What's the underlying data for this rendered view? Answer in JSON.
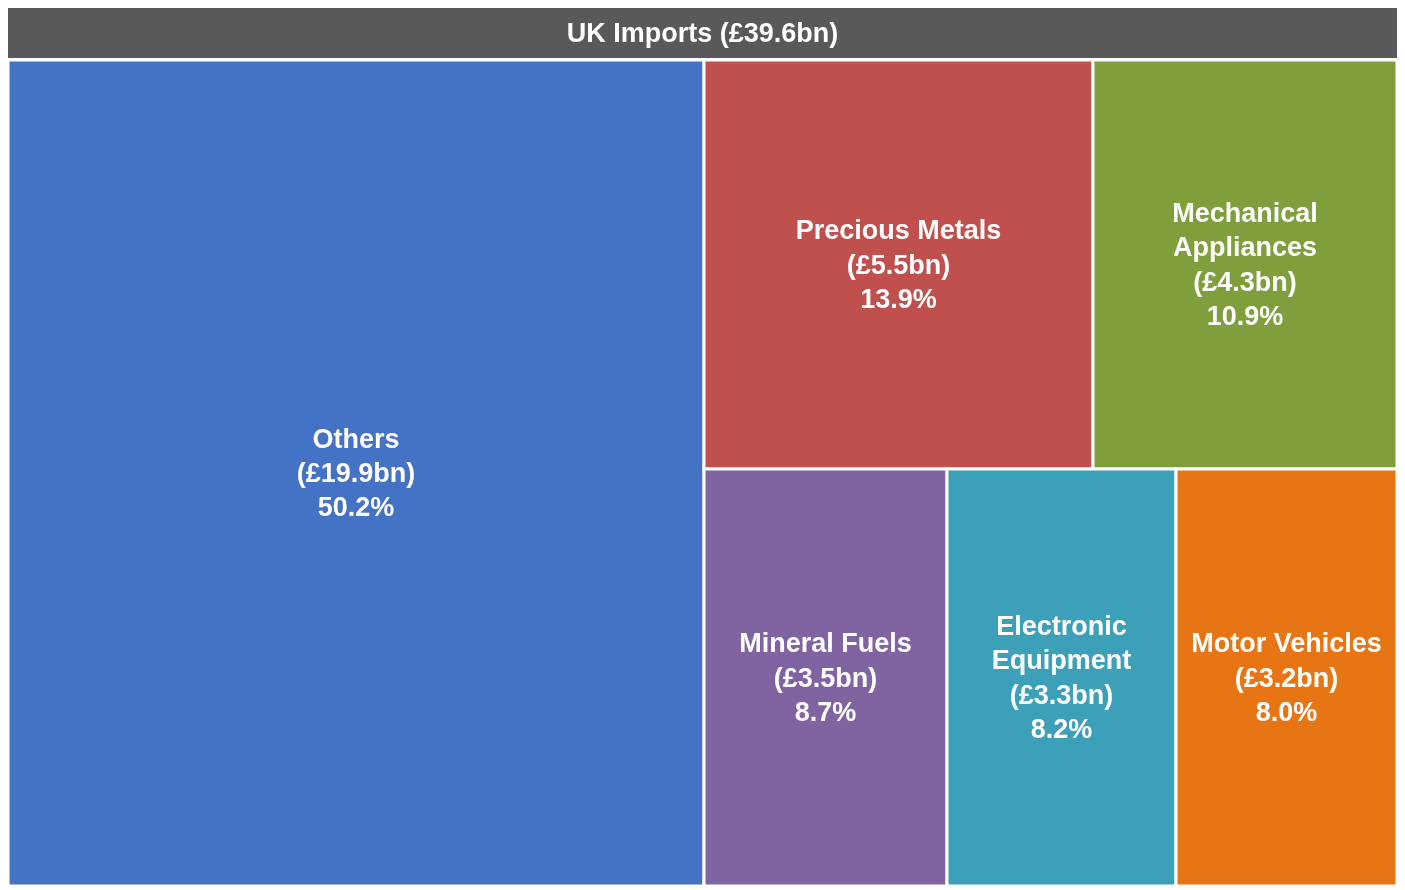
{
  "chart_data": {
    "type": "other",
    "title": "UK Imports (£39.6bn)",
    "categories": [
      "Others",
      "Precious Metals",
      "Mechanical Appliances",
      "Mineral Fuels",
      "Electronic Equipment",
      "Motor Vehicles"
    ],
    "series": [
      {
        "values": [
          19.9,
          5.5,
          4.3,
          3.5,
          3.3,
          3.2
        ],
        "value_labels": [
          "(£19.9bn)",
          "(£5.5bn)",
          "(£4.3bn)",
          "(£3.5bn)",
          "(£3.3bn)",
          "(£3.2bn)"
        ],
        "colors": [
          "#4472c4",
          "#c0504d",
          "#7f9f3d",
          "#8064a2",
          "#3da0b9",
          "#e87514"
        ]
      },
      {
        "values": [
          50.2,
          13.9,
          10.9,
          8.7,
          8.2,
          8.0
        ],
        "value_labels": [
          "50.2%",
          "13.9%",
          "10.9%",
          "8.7%",
          "8.2%",
          "8.0%"
        ]
      }
    ]
  }
}
